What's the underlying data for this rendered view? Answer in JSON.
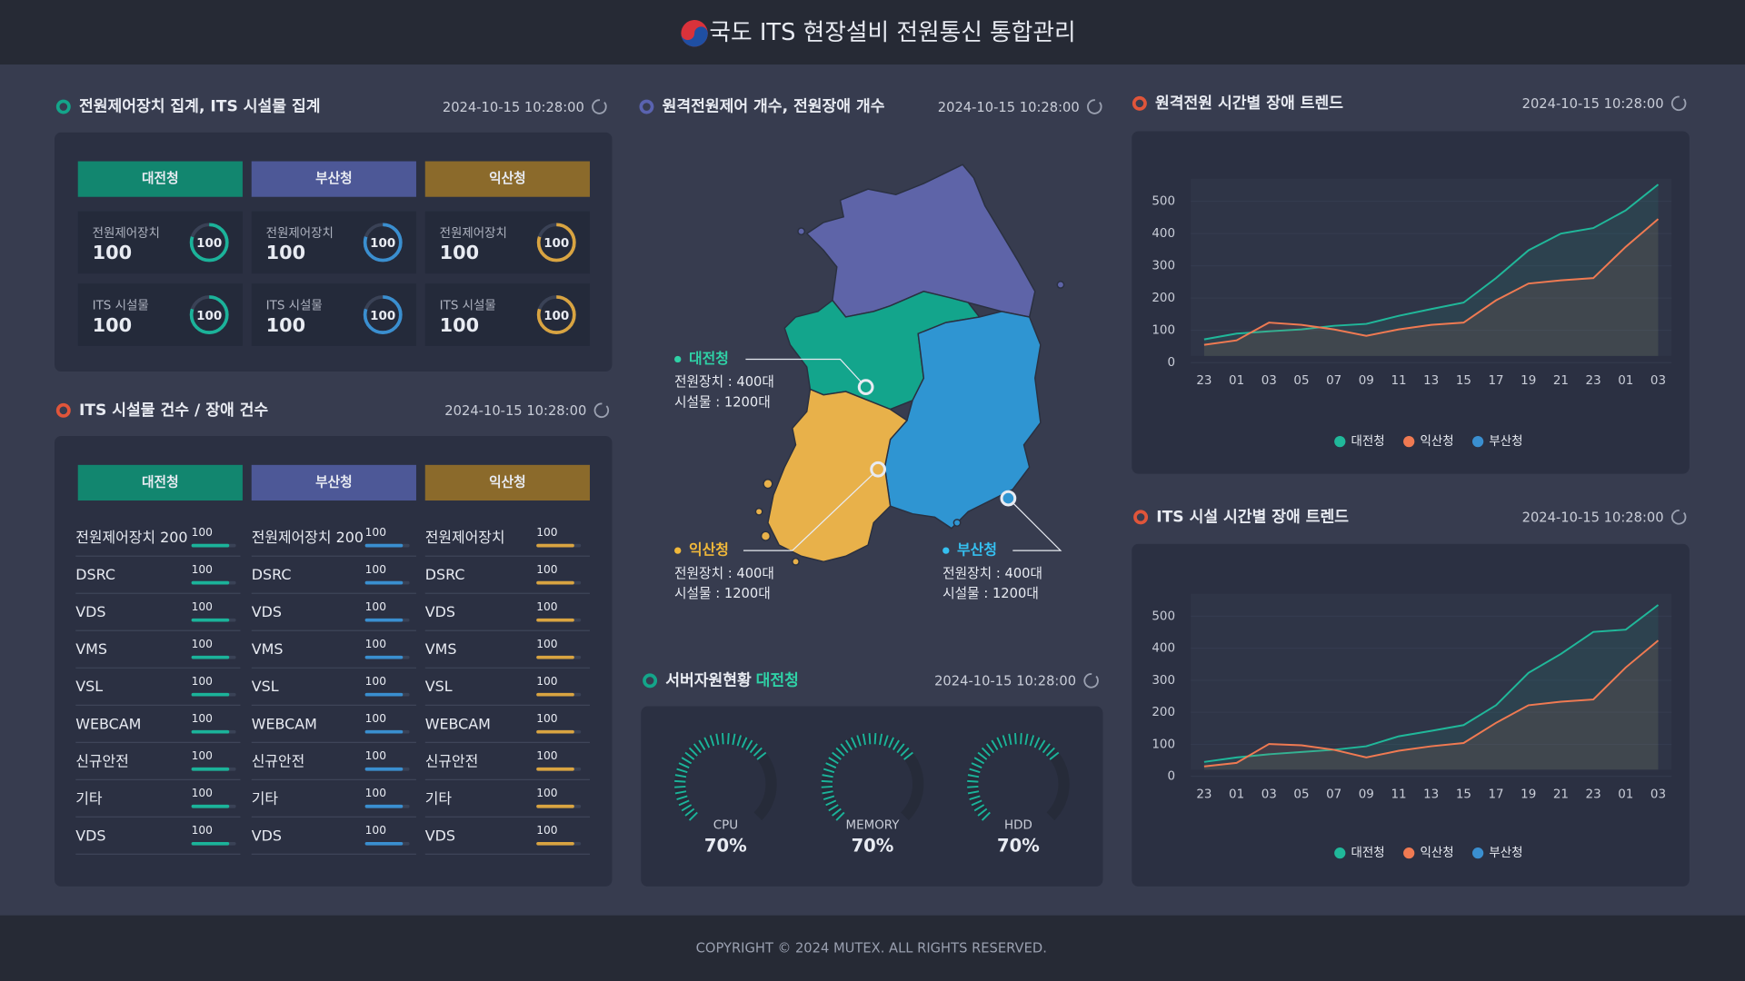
{
  "header": {
    "title": "국도 ITS 현장설비 전원통신 통합관리"
  },
  "summary": {
    "title": "전원제어장치 집계, ITS 시설물 집계",
    "timestamp": "2024-10-15 10:28:00",
    "regions": [
      {
        "name": "대전청",
        "color": "#12866f",
        "accent": "#1bb39a"
      },
      {
        "name": "부산청",
        "color": "#4d5897",
        "accent": "#3a8fd0"
      },
      {
        "name": "익산청",
        "color": "#8b6a2b",
        "accent": "#d9a441"
      }
    ],
    "rows": [
      {
        "label": "전원제어장치",
        "values": [
          100,
          100,
          100
        ]
      },
      {
        "label": "ITS 시설물",
        "values": [
          100,
          100,
          100
        ]
      }
    ]
  },
  "facilities": {
    "title": "ITS 시설물 건수 / 장애 건수",
    "timestamp": "2024-10-15 10:28:00",
    "regions": [
      {
        "name": "대전청",
        "color": "#12866f"
      },
      {
        "name": "부산청",
        "color": "#4d5897"
      },
      {
        "name": "익산청",
        "color": "#8b6a2b"
      }
    ],
    "columns": [
      {
        "bar_color": "#1bb39a",
        "names": [
          "전원제어장치 200",
          "DSRC",
          "VDS",
          "VMS",
          "VSL",
          "WEBCAM",
          "신규안전",
          "기타",
          "VDS"
        ],
        "values": [
          100,
          100,
          100,
          100,
          100,
          100,
          100,
          100,
          100
        ]
      },
      {
        "bar_color": "#3a8fd0",
        "names": [
          "전원제어장치 200",
          "DSRC",
          "VDS",
          "VMS",
          "VSL",
          "WEBCAM",
          "신규안전",
          "기타",
          "VDS"
        ],
        "values": [
          100,
          100,
          100,
          100,
          100,
          100,
          100,
          100,
          100
        ]
      },
      {
        "bar_color": "#d9a441",
        "names": [
          "전원제어장치",
          "DSRC",
          "VDS",
          "VMS",
          "VSL",
          "WEBCAM",
          "신규안전",
          "기타",
          "VDS"
        ],
        "values": [
          100,
          100,
          100,
          100,
          100,
          100,
          100,
          100,
          100
        ]
      }
    ]
  },
  "map": {
    "title": "원격전원제어 개수, 전원장애 개수",
    "timestamp": "2024-10-15 10:28:00",
    "regions": [
      {
        "name": "대전청",
        "color": "#2fd1a6",
        "lines": [
          "전원장치 : 400대",
          "시설물 : 1200대"
        ]
      },
      {
        "name": "익산청",
        "color": "#f0b83a",
        "lines": [
          "전원장치 : 400대",
          "시설물 : 1200대"
        ]
      },
      {
        "name": "부산청",
        "color": "#35c0f0",
        "lines": [
          "전원장치 : 400대",
          "시설물 : 1200대"
        ]
      }
    ]
  },
  "server": {
    "title": "서버자원현황",
    "region": "대전청",
    "timestamp": "2024-10-15 10:28:00",
    "labels": [
      "CPU",
      "MEMORY",
      "HDD"
    ],
    "values": [
      70,
      70,
      70
    ],
    "value_labels": [
      "70%",
      "70%",
      "70%"
    ],
    "color": "#1bb39a"
  },
  "chart_data": [
    {
      "type": "line",
      "title": "원격전원 시간별 장애 트렌드",
      "timestamp": "2024-10-15 10:28:00",
      "categories": [
        "23",
        "01",
        "03",
        "05",
        "07",
        "09",
        "11",
        "13",
        "15",
        "17",
        "19",
        "21",
        "23",
        "01",
        "03"
      ],
      "ylim": [
        0,
        570
      ],
      "yticks": [
        0,
        100,
        200,
        300,
        400,
        500
      ],
      "legend": "bottom",
      "series": [
        {
          "name": "대전청",
          "color": "#20b89a",
          "values": [
            72,
            90,
            97,
            103,
            114,
            120,
            145,
            166,
            186,
            262,
            348,
            400,
            417,
            472,
            552
          ]
        },
        {
          "name": "익산청",
          "color": "#f07a52",
          "values": [
            55,
            69,
            124,
            117,
            103,
            83,
            103,
            117,
            124,
            193,
            245,
            255,
            262,
            359,
            445
          ]
        },
        {
          "name": "부산청",
          "color": "#3a8fd0",
          "values": [
            null,
            null,
            null,
            null,
            null,
            null,
            null,
            null,
            null,
            null,
            null,
            null,
            null,
            null,
            null
          ]
        }
      ]
    },
    {
      "type": "line",
      "title": "ITS 시설 시간별 장애 트렌드",
      "timestamp": "2024-10-15 10:28:00",
      "categories": [
        "23",
        "01",
        "03",
        "05",
        "07",
        "09",
        "11",
        "13",
        "15",
        "17",
        "19",
        "21",
        "23",
        "01",
        "03"
      ],
      "ylim": [
        0,
        570
      ],
      "yticks": [
        0,
        100,
        200,
        300,
        400,
        500
      ],
      "legend": "bottom",
      "series": [
        {
          "name": "대전청",
          "color": "#20b89a",
          "values": [
            45,
            59,
            69,
            76,
            83,
            94,
            125,
            142,
            160,
            222,
            323,
            382,
            451,
            458,
            535
          ]
        },
        {
          "name": "익산청",
          "color": "#f07a52",
          "values": [
            31,
            42,
            101,
            97,
            83,
            59,
            80,
            94,
            104,
            167,
            222,
            233,
            240,
            340,
            424
          ]
        },
        {
          "name": "부산청",
          "color": "#3a8fd0",
          "values": [
            null,
            null,
            null,
            null,
            null,
            null,
            null,
            null,
            null,
            null,
            null,
            null,
            null,
            null,
            null
          ]
        }
      ]
    }
  ],
  "footer": {
    "text": "COPYRIGHT © 2024 MUTEX.  ALL RIGHTS RESERVED."
  }
}
